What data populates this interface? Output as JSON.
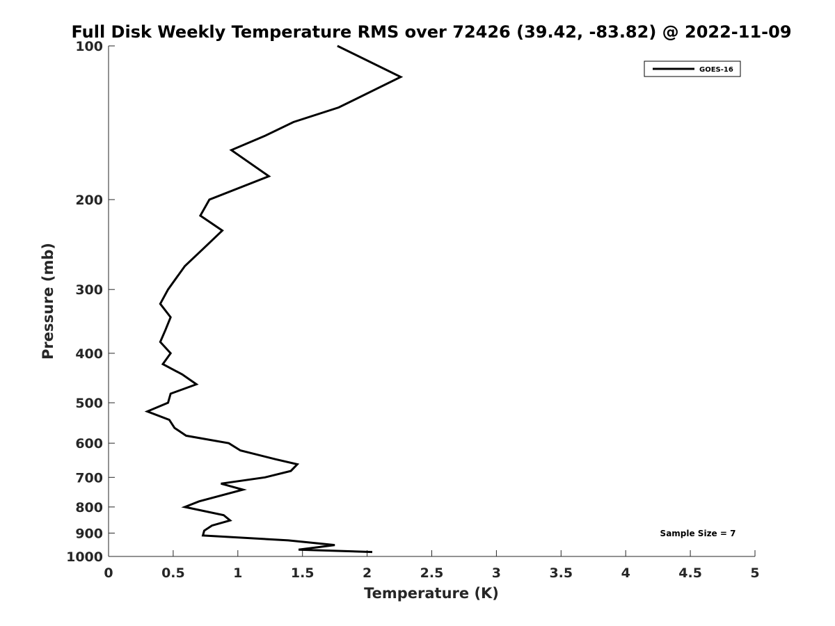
{
  "chart_data": {
    "type": "line",
    "title": "Full Disk Weekly Temperature RMS over 72426 (39.42, -83.82) @ 2022-11-09",
    "xlabel": "Temperature (K)",
    "ylabel": "Pressure (mb)",
    "xlim": [
      0,
      5
    ],
    "ylim": [
      1000,
      100
    ],
    "y_scale": "log",
    "x_ticks": [
      0,
      0.5,
      1,
      1.5,
      2,
      2.5,
      3,
      3.5,
      4,
      4.5,
      5
    ],
    "x_tick_labels": [
      "0",
      "0.5",
      "1",
      "1.5",
      "2",
      "2.5",
      "3",
      "3.5",
      "4",
      "4.5",
      "5"
    ],
    "y_ticks": [
      100,
      200,
      300,
      400,
      500,
      600,
      700,
      800,
      900,
      1000
    ],
    "y_tick_labels": [
      "100",
      "200",
      "300",
      "400",
      "500",
      "600",
      "700",
      "800",
      "900",
      "1000"
    ],
    "grid": false,
    "legend_position": "top-right",
    "annotation": "Sample Size = 7",
    "series": [
      {
        "name": "GOES-16",
        "color": "#000000",
        "points": [
          [
            1.77,
            100
          ],
          [
            2.26,
            115
          ],
          [
            1.78,
            132
          ],
          [
            1.43,
            141
          ],
          [
            1.21,
            150
          ],
          [
            0.95,
            160
          ],
          [
            1.24,
            180
          ],
          [
            0.78,
            200
          ],
          [
            0.71,
            215
          ],
          [
            0.88,
            230
          ],
          [
            0.73,
            250
          ],
          [
            0.59,
            270
          ],
          [
            0.46,
            300
          ],
          [
            0.4,
            320
          ],
          [
            0.48,
            340
          ],
          [
            0.44,
            360
          ],
          [
            0.4,
            380
          ],
          [
            0.48,
            400
          ],
          [
            0.42,
            420
          ],
          [
            0.57,
            440
          ],
          [
            0.68,
            460
          ],
          [
            0.48,
            480
          ],
          [
            0.46,
            500
          ],
          [
            0.3,
            520
          ],
          [
            0.47,
            540
          ],
          [
            0.51,
            560
          ],
          [
            0.6,
            580
          ],
          [
            0.93,
            600
          ],
          [
            1.02,
            620
          ],
          [
            1.29,
            645
          ],
          [
            1.46,
            660
          ],
          [
            1.41,
            680
          ],
          [
            1.21,
            700
          ],
          [
            0.87,
            720
          ],
          [
            1.04,
            740
          ],
          [
            0.7,
            780
          ],
          [
            0.59,
            800
          ],
          [
            0.89,
            830
          ],
          [
            0.94,
            850
          ],
          [
            0.8,
            870
          ],
          [
            0.74,
            890
          ],
          [
            0.73,
            910
          ],
          [
            1.39,
            930
          ],
          [
            1.75,
            950
          ],
          [
            1.47,
            970
          ],
          [
            2.04,
            980
          ]
        ]
      }
    ]
  }
}
